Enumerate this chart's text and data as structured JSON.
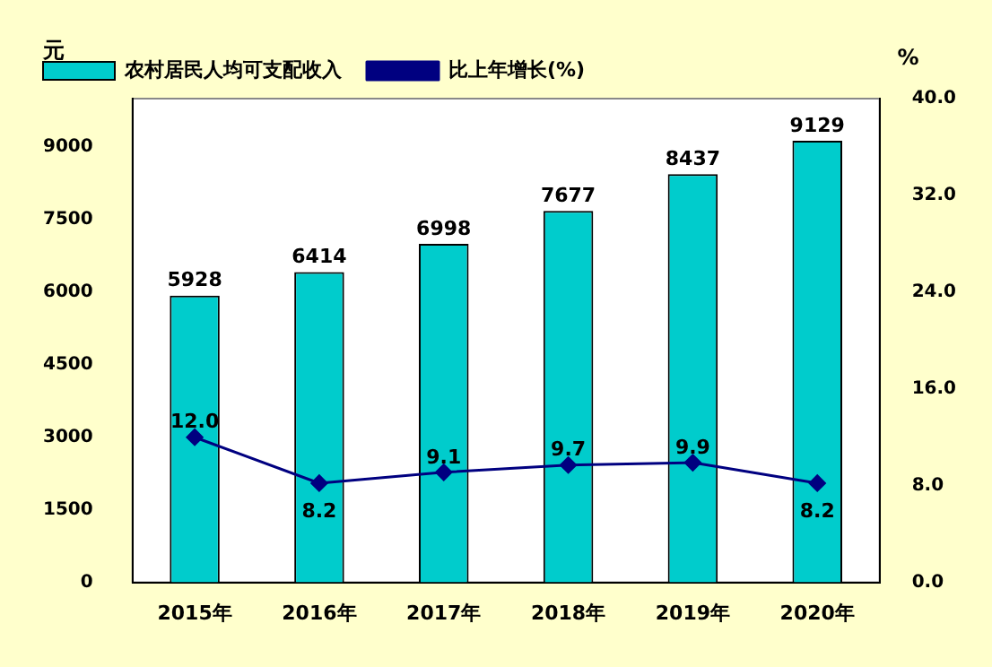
{
  "chart_data": {
    "type": "bar",
    "ylabel": "元",
    "y2label": "%",
    "categories": [
      "2015年",
      "2016年",
      "2017年",
      "2018年",
      "2019年",
      "2020年"
    ],
    "series": [
      {
        "name": "农村居民人均可支配收入",
        "color": "#00cccc",
        "values": [
          5928,
          6414,
          6998,
          7677,
          8437,
          9129
        ]
      },
      {
        "name": "比上年增长(%)",
        "type": "line",
        "axis": "y2",
        "color": "#000080",
        "marker": "diamond",
        "values": [
          12.0,
          8.2,
          9.1,
          9.7,
          9.9,
          8.2
        ],
        "value_labels": [
          "12.0",
          "8.2",
          "9.1",
          "9.7",
          "9.9",
          "8.2"
        ]
      }
    ],
    "ylim": [
      0,
      10000
    ],
    "yticks": [
      0,
      1500,
      3000,
      4500,
      6000,
      7500,
      9000
    ],
    "y2lim": [
      0,
      40
    ],
    "y2ticks": [
      {
        "value": 0,
        "label": "0.0"
      },
      {
        "value": 8,
        "label": "8.0"
      },
      {
        "value": 16,
        "label": "16.0"
      },
      {
        "value": 24,
        "label": "24.0"
      },
      {
        "value": 32,
        "label": "32.0"
      },
      {
        "value": 40,
        "label": "40.0"
      }
    ],
    "data_labels": true,
    "legend": "top",
    "grid": false
  }
}
